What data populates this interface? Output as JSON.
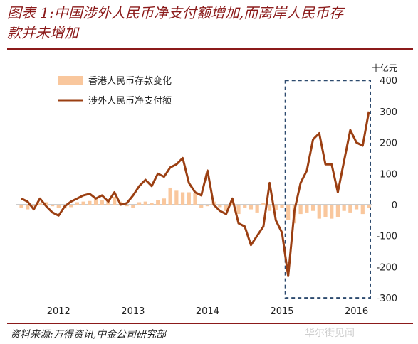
{
  "title": {
    "line1": "图表 1:中国涉外人民币净支付额增加,而离岸人民币存",
    "line2": "款并未增加"
  },
  "source_note": "资料来源:万得资讯,中金公司研究部",
  "watermark": "华尔街见闻",
  "colors": {
    "line": "#9b3f12",
    "bars": "#f9c79d",
    "highlight_box": "#2c4a6e",
    "title": "#8b1a1a"
  },
  "chart_data": {
    "type": "bar+line",
    "x_year_labels": [
      "2012",
      "2013",
      "2014",
      "2015",
      "2016"
    ],
    "y_unit": "十亿元",
    "y_ticks": [
      "400",
      "300",
      "200",
      "100",
      "0",
      "-100",
      "-200",
      "-300"
    ],
    "ylim": [
      -300,
      400
    ],
    "legend": [
      "香港人民币存款变化",
      "涉外人民币净支付额"
    ],
    "legend_position": "top-left",
    "highlight_box": {
      "x_range": [
        "2015-08",
        "2016-09"
      ],
      "y_range": [
        -300,
        400
      ],
      "style": "dashed"
    },
    "months": [
      "2012-01",
      "2012-02",
      "2012-03",
      "2012-04",
      "2012-05",
      "2012-06",
      "2012-07",
      "2012-08",
      "2012-09",
      "2012-10",
      "2012-11",
      "2012-12",
      "2013-01",
      "2013-02",
      "2013-03",
      "2013-04",
      "2013-05",
      "2013-06",
      "2013-07",
      "2013-08",
      "2013-09",
      "2013-10",
      "2013-11",
      "2013-12",
      "2014-01",
      "2014-02",
      "2014-03",
      "2014-04",
      "2014-05",
      "2014-06",
      "2014-07",
      "2014-08",
      "2014-09",
      "2014-10",
      "2014-11",
      "2014-12",
      "2015-01",
      "2015-02",
      "2015-03",
      "2015-04",
      "2015-05",
      "2015-06",
      "2015-07",
      "2015-08",
      "2015-09",
      "2015-10",
      "2015-11",
      "2015-12",
      "2016-01",
      "2016-02",
      "2016-03",
      "2016-04",
      "2016-05",
      "2016-06",
      "2016-07",
      "2016-08",
      "2016-09"
    ],
    "series": [
      {
        "name": "香港人民币存款变化",
        "kind": "bar",
        "values": [
          -10,
          -15,
          -5,
          5,
          8,
          -5,
          -10,
          -12,
          -8,
          8,
          10,
          12,
          20,
          15,
          18,
          25,
          10,
          -5,
          -10,
          8,
          10,
          5,
          15,
          20,
          55,
          45,
          40,
          40,
          38,
          -10,
          -5,
          10,
          -8,
          -20,
          12,
          -30,
          -10,
          -15,
          -25,
          5,
          -20,
          -18,
          -10,
          -50,
          -60,
          -30,
          -25,
          -20,
          -45,
          -40,
          -45,
          -40,
          -20,
          -25,
          -15,
          -30,
          -10
        ]
      },
      {
        "name": "涉外人民币净支付额",
        "kind": "line",
        "values": [
          20,
          10,
          -15,
          20,
          -5,
          -25,
          -35,
          -5,
          10,
          20,
          30,
          35,
          20,
          30,
          10,
          40,
          0,
          5,
          30,
          60,
          80,
          60,
          100,
          90,
          120,
          130,
          150,
          70,
          40,
          30,
          110,
          0,
          -20,
          -30,
          20,
          -60,
          -70,
          -130,
          -100,
          -70,
          70,
          -50,
          -90,
          -230,
          -20,
          70,
          110,
          210,
          230,
          130,
          130,
          40,
          140,
          240,
          200,
          190,
          300
        ]
      }
    ]
  }
}
